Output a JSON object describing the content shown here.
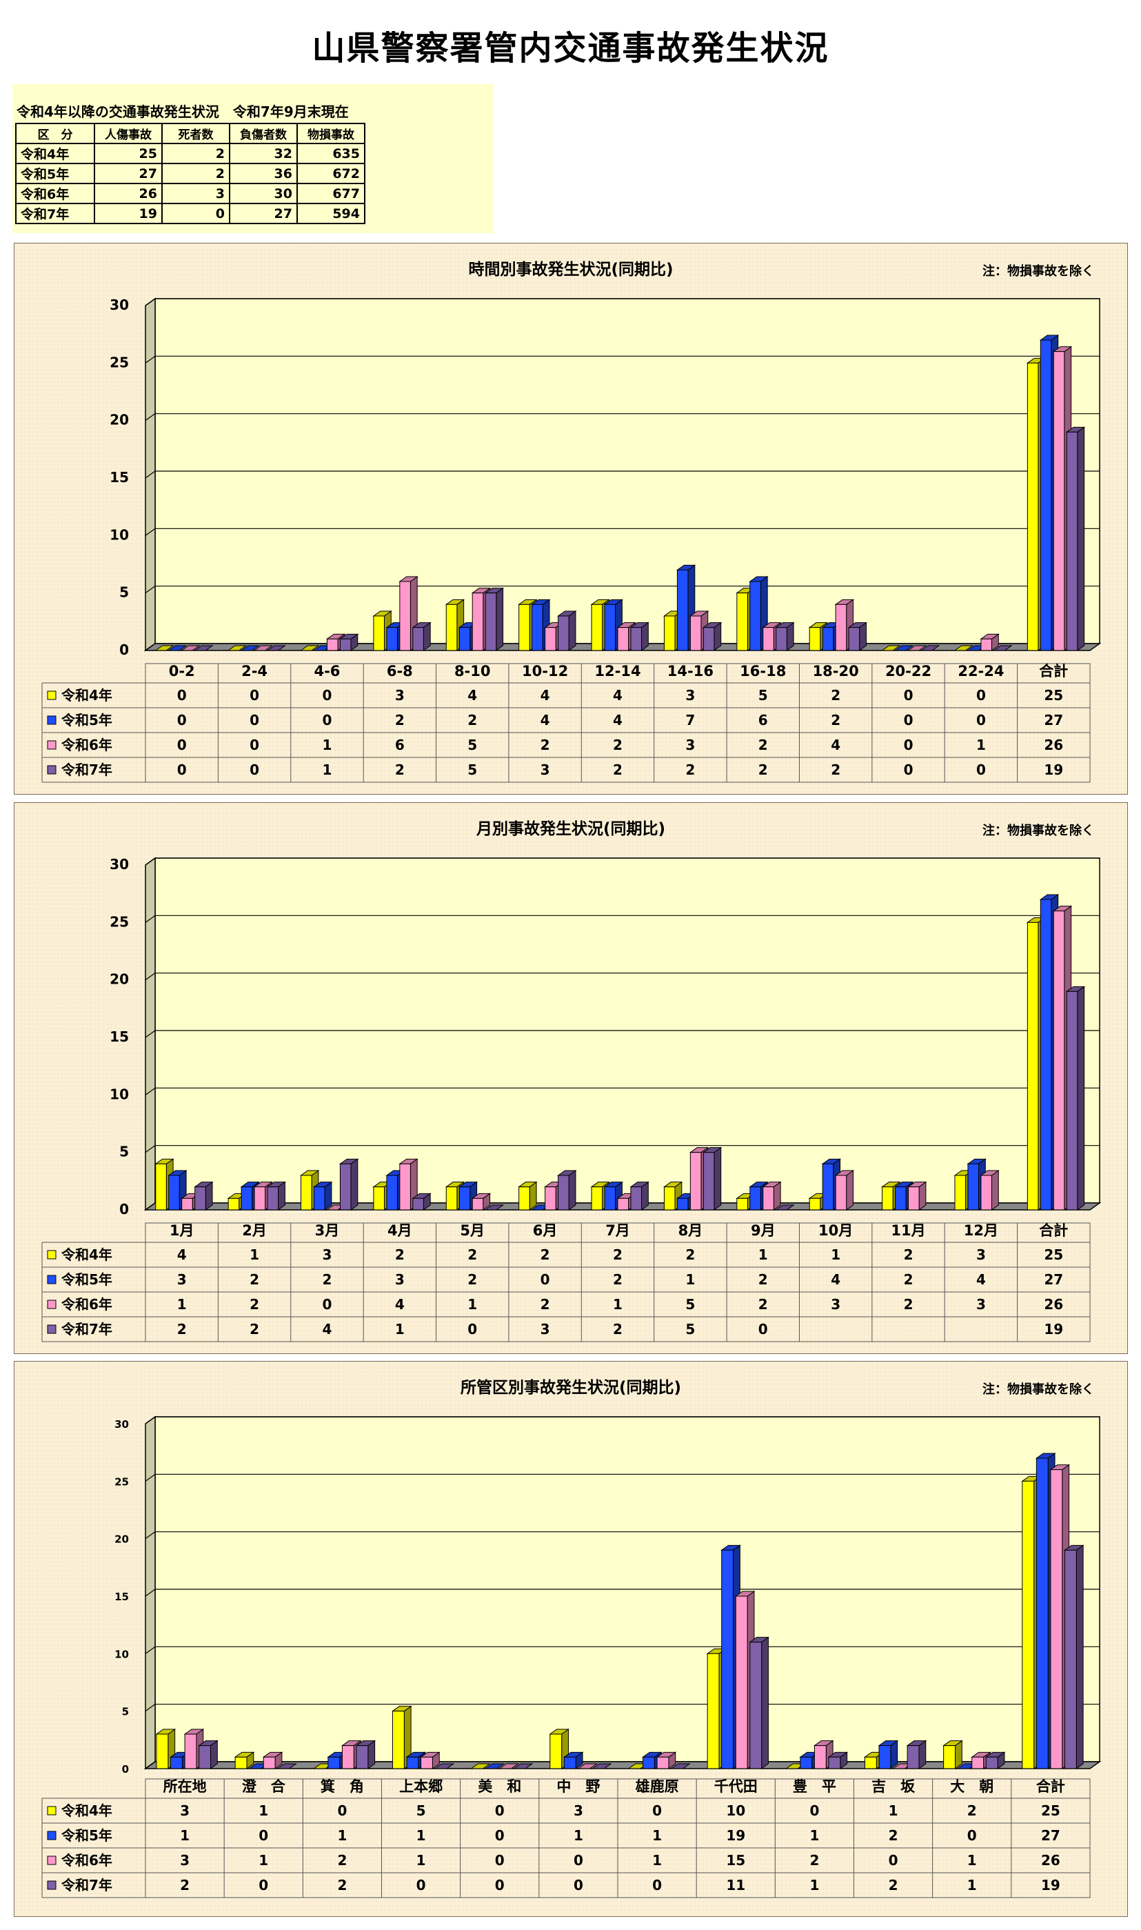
{
  "page": {
    "title": "山県警察署管内交通事故発生状況"
  },
  "summary": {
    "heading": "令和4年以降の交通事故発生状況　令和7年9月末現在",
    "columns": [
      "区　分",
      "人傷事故",
      "死者数",
      "負傷者数",
      "物損事故"
    ],
    "rows": [
      {
        "label": "令和4年",
        "values": [
          "25",
          "2",
          "32",
          "635"
        ]
      },
      {
        "label": "令和5年",
        "values": [
          "27",
          "2",
          "36",
          "672"
        ]
      },
      {
        "label": "令和6年",
        "values": [
          "26",
          "3",
          "30",
          "677"
        ]
      },
      {
        "label": "令和7年",
        "values": [
          "19",
          "0",
          "27",
          "594"
        ]
      }
    ]
  },
  "colors": {
    "令和4年": "#ffff00",
    "令和5年": "#1f4fff",
    "令和6年": "#ff99cc",
    "令和7年": "#8060a8"
  },
  "chart_data": [
    {
      "type": "bar",
      "title": "時間別事故発生状況(同期比)",
      "note": "注：物損事故を除く",
      "ylim": [
        0,
        30
      ],
      "yticks": [
        "0",
        "5",
        "10",
        "15",
        "20",
        "25",
        "30"
      ],
      "categories": [
        "0-2",
        "2-4",
        "4-6",
        "6-8",
        "8-10",
        "10-12",
        "12-14",
        "14-16",
        "16-18",
        "18-20",
        "20-22",
        "22-24",
        "合計"
      ],
      "series": [
        {
          "name": "令和4年",
          "values": [
            0,
            0,
            0,
            3,
            4,
            4,
            4,
            3,
            5,
            2,
            0,
            0,
            25
          ],
          "labels": [
            "0",
            "0",
            "0",
            "3",
            "4",
            "4",
            "4",
            "3",
            "5",
            "2",
            "0",
            "0",
            "25"
          ]
        },
        {
          "name": "令和5年",
          "values": [
            0,
            0,
            0,
            2,
            2,
            4,
            4,
            7,
            6,
            2,
            0,
            0,
            27
          ],
          "labels": [
            "0",
            "0",
            "0",
            "2",
            "2",
            "4",
            "4",
            "7",
            "6",
            "2",
            "0",
            "0",
            "27"
          ]
        },
        {
          "name": "令和6年",
          "values": [
            0,
            0,
            1,
            6,
            5,
            2,
            2,
            3,
            2,
            4,
            0,
            1,
            26
          ],
          "labels": [
            "0",
            "0",
            "1",
            "6",
            "5",
            "2",
            "2",
            "3",
            "2",
            "4",
            "0",
            "1",
            "26"
          ]
        },
        {
          "name": "令和7年",
          "values": [
            0,
            0,
            1,
            2,
            5,
            3,
            2,
            2,
            2,
            2,
            0,
            0,
            19
          ],
          "labels": [
            "0",
            "0",
            "1",
            "2",
            "5",
            "3",
            "2",
            "2",
            "2",
            "2",
            "0",
            "0",
            "19"
          ]
        }
      ]
    },
    {
      "type": "bar",
      "title": "月別事故発生状況(同期比)",
      "note": "注：物損事故を除く",
      "ylim": [
        0,
        30
      ],
      "yticks": [
        "0",
        "5",
        "10",
        "15",
        "20",
        "25",
        "30"
      ],
      "categories": [
        "1月",
        "2月",
        "3月",
        "4月",
        "5月",
        "6月",
        "7月",
        "8月",
        "9月",
        "10月",
        "11月",
        "12月",
        "合計"
      ],
      "series": [
        {
          "name": "令和4年",
          "values": [
            4,
            1,
            3,
            2,
            2,
            2,
            2,
            2,
            1,
            1,
            2,
            3,
            25
          ],
          "labels": [
            "4",
            "1",
            "3",
            "2",
            "2",
            "2",
            "2",
            "2",
            "1",
            "1",
            "2",
            "3",
            "25"
          ]
        },
        {
          "name": "令和5年",
          "values": [
            3,
            2,
            2,
            3,
            2,
            0,
            2,
            1,
            2,
            4,
            2,
            4,
            27
          ],
          "labels": [
            "3",
            "2",
            "2",
            "3",
            "2",
            "0",
            "2",
            "1",
            "2",
            "4",
            "2",
            "4",
            "27"
          ]
        },
        {
          "name": "令和6年",
          "values": [
            1,
            2,
            0,
            4,
            1,
            2,
            1,
            5,
            2,
            3,
            2,
            3,
            26
          ],
          "labels": [
            "1",
            "2",
            "0",
            "4",
            "1",
            "2",
            "1",
            "5",
            "2",
            "3",
            "2",
            "3",
            "26"
          ]
        },
        {
          "name": "令和7年",
          "values": [
            2,
            2,
            4,
            1,
            0,
            3,
            2,
            5,
            0,
            null,
            null,
            null,
            19
          ],
          "labels": [
            "2",
            "2",
            "4",
            "1",
            "0",
            "3",
            "2",
            "5",
            "0",
            "",
            "",
            "",
            "19"
          ]
        }
      ]
    },
    {
      "type": "bar",
      "title": "所管区別事故発生状況(同期比)",
      "note": "注：物損事故を除く",
      "ylim": [
        0,
        30
      ],
      "yticks": [
        "0",
        "5",
        "10",
        "15",
        "20",
        "25",
        "30"
      ],
      "categories": [
        "所在地",
        "澄　合",
        "箕　角",
        "上本郷",
        "美　和",
        "中　野",
        "雄鹿原",
        "千代田",
        "豊　平",
        "吉　坂",
        "大　朝",
        "合計"
      ],
      "series": [
        {
          "name": "令和4年",
          "values": [
            3,
            1,
            0,
            5,
            0,
            3,
            0,
            10,
            0,
            1,
            2,
            25
          ],
          "labels": [
            "3",
            "1",
            "0",
            "5",
            "0",
            "3",
            "0",
            "10",
            "0",
            "1",
            "2",
            "25"
          ]
        },
        {
          "name": "令和5年",
          "values": [
            1,
            0,
            1,
            1,
            0,
            1,
            1,
            19,
            1,
            2,
            0,
            27
          ],
          "labels": [
            "1",
            "0",
            "1",
            "1",
            "0",
            "1",
            "1",
            "19",
            "1",
            "2",
            "0",
            "27"
          ]
        },
        {
          "name": "令和6年",
          "values": [
            3,
            1,
            2,
            1,
            0,
            0,
            1,
            15,
            2,
            0,
            1,
            26
          ],
          "labels": [
            "3",
            "1",
            "2",
            "1",
            "0",
            "0",
            "1",
            "15",
            "2",
            "0",
            "1",
            "26"
          ]
        },
        {
          "name": "令和7年",
          "values": [
            2,
            0,
            2,
            0,
            0,
            0,
            0,
            11,
            1,
            2,
            1,
            19
          ],
          "labels": [
            "2",
            "0",
            "2",
            "0",
            "0",
            "0",
            "0",
            "11",
            "1",
            "2",
            "1",
            "19"
          ]
        }
      ]
    }
  ]
}
